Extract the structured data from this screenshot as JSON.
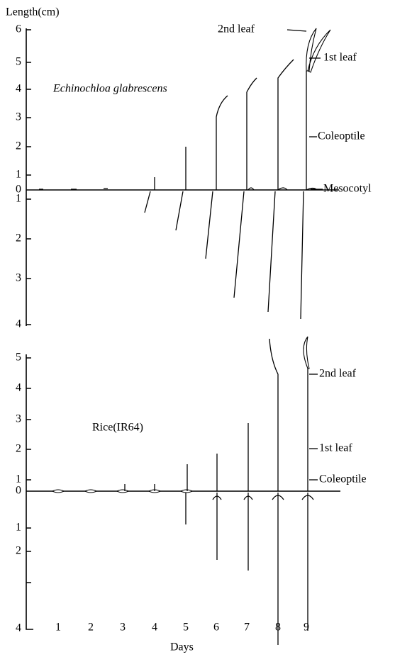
{
  "top": {
    "axis_label": "Length(cm)",
    "species": "Echinochloa glabrescens",
    "yticks_above": [
      "6",
      "5",
      "4",
      "3",
      "2",
      "1",
      "0"
    ],
    "yticks_below": [
      "1",
      "2",
      "3",
      "4"
    ],
    "labels": [
      "2nd leaf",
      "1st leaf",
      "Coleoptile",
      "Mesocotyl"
    ]
  },
  "bottom": {
    "species": "Rice(IR64)",
    "yticks_above": [
      "5",
      "4",
      "3",
      "2",
      "1",
      "0"
    ],
    "yticks_below": [
      "1",
      "2",
      "4"
    ],
    "labels": [
      "2nd leaf",
      "1st leaf",
      "Coleoptile"
    ]
  },
  "x_axis": {
    "days": [
      "1",
      "2",
      "3",
      "4",
      "5",
      "6",
      "7",
      "8",
      "9"
    ],
    "label": "Days"
  }
}
